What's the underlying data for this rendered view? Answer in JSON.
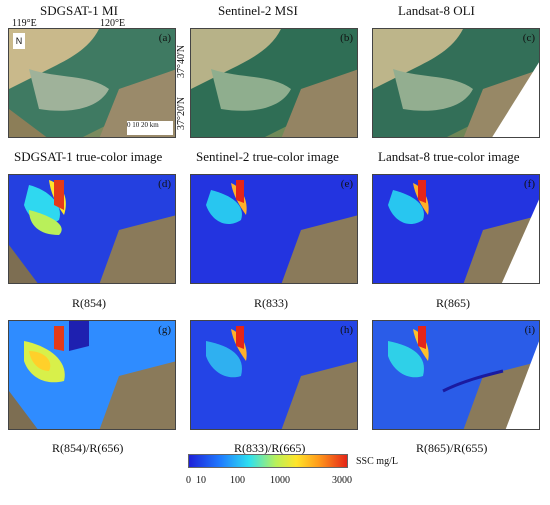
{
  "row1_titles": [
    "SDGSAT-1 MI",
    "Sentinel-2 MSI",
    "Landsat-8 OLI"
  ],
  "row2_titles": [
    "SDGSAT-1 true-color image",
    "Sentinel-2 true-color image",
    "Landsat-8 true-color image"
  ],
  "row3_captions": [
    "R(854)",
    "R(833)",
    "R(865)"
  ],
  "row4_captions": [
    "R(854)/R(656)",
    "R(833)/R(665)",
    "R(865)/R(655)"
  ],
  "panel_labels": [
    "(a)",
    "(b)",
    "(c)",
    "(d)",
    "(e)",
    "(f)",
    "(g)",
    "(h)",
    "(i)"
  ],
  "map_annotations": {
    "lon_1": "119°E",
    "lon_2": "120°E",
    "lat_1": "37°40'N",
    "lat_2": "37°20'N",
    "north": "N",
    "scale": "0  10  20  km"
  },
  "colorbar": {
    "label": "SSC  mg/L",
    "ticks": [
      "0",
      "10",
      "100",
      "1000",
      "3000"
    ]
  }
}
